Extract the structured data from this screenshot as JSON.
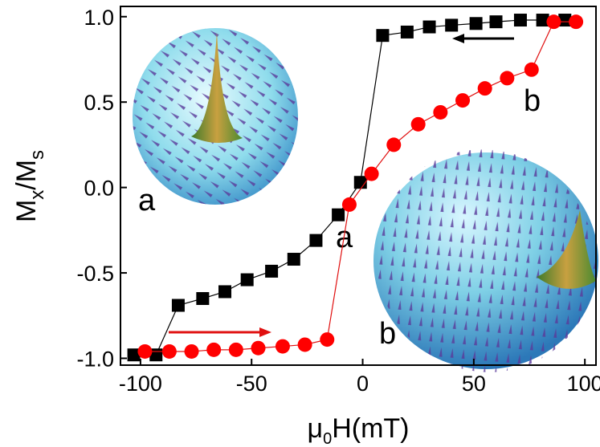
{
  "chart_data": {
    "type": "scatter",
    "x_label": [
      "μ",
      "0",
      "H(mT)"
    ],
    "y_label": [
      "M",
      "x",
      "/M",
      "s"
    ],
    "xlim": [
      -109,
      105
    ],
    "ylim": [
      -1.04,
      1.06
    ],
    "xticks": [
      -100,
      -50,
      0,
      50,
      100
    ],
    "yticks": [
      {
        "value": -1,
        "label": "-1.0"
      },
      -0.5,
      {
        "value": 0,
        "label": "0.0"
      },
      0.5,
      {
        "value": 1,
        "label": "1.0"
      }
    ],
    "series": [
      {
        "color": "#000000",
        "marker": "square",
        "line_color": "#000000",
        "x": [
          -103,
          -93,
          -83,
          -72,
          -62,
          -52,
          -41,
          -31,
          -21,
          -11,
          -1,
          9,
          20,
          30,
          40,
          51,
          60,
          71,
          81,
          91
        ],
        "values": [
          -0.98,
          -0.98,
          -0.69,
          -0.65,
          -0.61,
          -0.54,
          -0.49,
          -0.42,
          -0.31,
          -0.16,
          0.03,
          0.89,
          0.91,
          0.94,
          0.95,
          0.96,
          0.97,
          0.98,
          0.98,
          0.98
        ]
      },
      {
        "color": "#ff0000",
        "marker": "circle",
        "line_color": "#e01010",
        "x": [
          -98,
          -87,
          -77,
          -67,
          -57,
          -47,
          -36,
          -26,
          -16,
          -6,
          4,
          14,
          25,
          35,
          45,
          55,
          65,
          76,
          86,
          96
        ],
        "values": [
          -0.96,
          -0.96,
          -0.96,
          -0.95,
          -0.95,
          -0.94,
          -0.93,
          -0.92,
          -0.89,
          -0.1,
          0.08,
          0.25,
          0.37,
          0.44,
          0.51,
          0.58,
          0.64,
          0.69,
          0.97,
          0.97
        ]
      }
    ],
    "annotations": [
      "a",
      "a",
      "b",
      "b"
    ]
  }
}
